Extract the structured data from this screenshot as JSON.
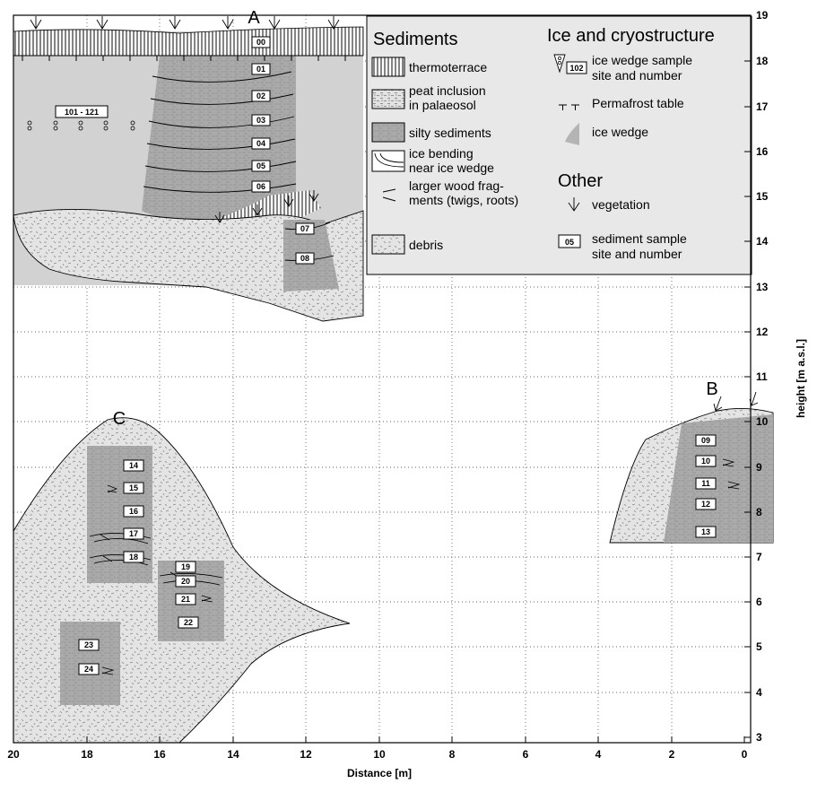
{
  "axes": {
    "x_title": "Distance [m]",
    "y_title": "height [m a.s.l.]",
    "x_range": [
      20,
      0
    ],
    "y_range": [
      3,
      19
    ],
    "x_ticks": [
      "20",
      "18",
      "16",
      "14",
      "12",
      "10",
      "8",
      "6",
      "4",
      "2",
      "0"
    ],
    "y_ticks": [
      "19",
      "18",
      "17",
      "16",
      "15",
      "14",
      "13",
      "12",
      "11",
      "10",
      "9",
      "8",
      "7",
      "6",
      "5",
      "4",
      "3"
    ],
    "grid": "dotted"
  },
  "profiles": {
    "a": "A",
    "b": "B",
    "c": "C"
  },
  "samples": {
    "a": [
      "00",
      "01",
      "02",
      "03",
      "04",
      "05",
      "06",
      "07",
      "08"
    ],
    "b": [
      "09",
      "10",
      "11",
      "12",
      "13"
    ],
    "c": [
      "14",
      "15",
      "16",
      "17",
      "18",
      "19",
      "20",
      "21",
      "22",
      "23",
      "24"
    ],
    "ice_wedge": "101 - 121"
  },
  "legend": {
    "sediments_title": "Sediments",
    "ice_title": "Ice and cryostructure",
    "other_title": "Other",
    "thermoterrace": "thermoterrace",
    "peat_l1": "peat inclusion",
    "peat_l2": "in palaeosol",
    "silty": "silty sediments",
    "bending_l1": "ice bending",
    "bending_l2": "near ice wedge",
    "wood_l1": "larger wood frag-",
    "wood_l2": "ments (twigs, roots)",
    "debris": "debris",
    "icesample_code": "102",
    "icesample_l1": "ice wedge sample",
    "icesample_l2": "site and number",
    "permafrost": "Permafrost table",
    "icewedge": "ice wedge",
    "vegetation": "vegetation",
    "sediment_code": "05",
    "sediment_l1": "sediment sample",
    "sediment_l2": "site and number"
  },
  "colors": {
    "debris_fill": "#e4e4e4",
    "silt_fill": "#aaaaaa",
    "icewedge_fill": "#d2d2d2",
    "legend_bg": "#e8e8e8",
    "frame": "#000000"
  }
}
